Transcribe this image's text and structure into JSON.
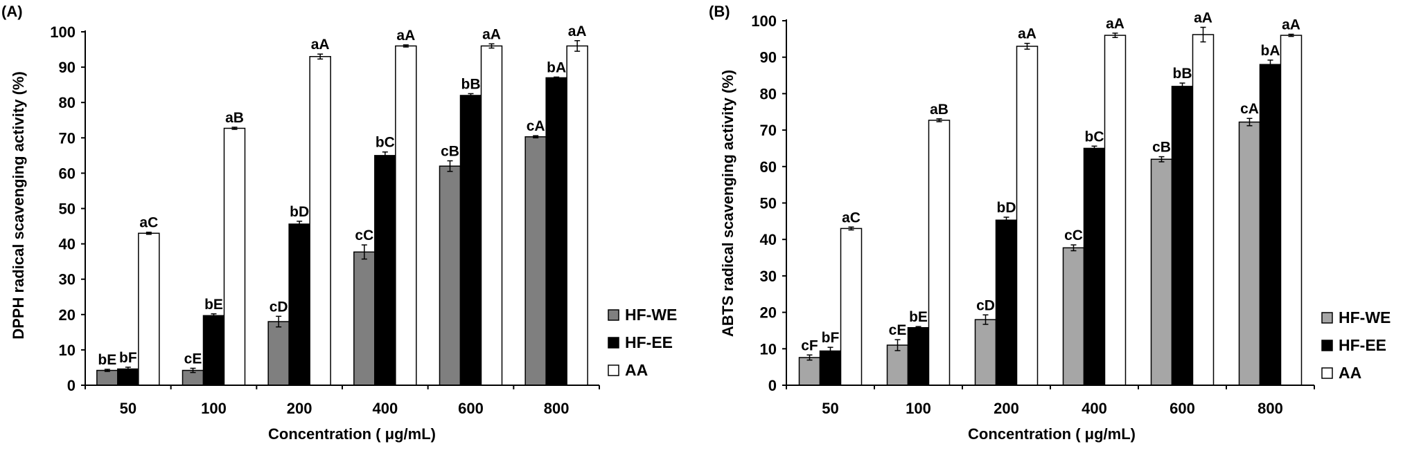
{
  "chart_data": [
    {
      "type": "bar",
      "panel_label": "(A)",
      "ylabel": "DPPH radical scavenging activity (%)",
      "xlabel": "Concentration ( μg/mL)",
      "categories": [
        "50",
        "100",
        "200",
        "400",
        "600",
        "800"
      ],
      "ylim": [
        0,
        100
      ],
      "yticks": [
        0,
        10,
        20,
        30,
        40,
        50,
        60,
        70,
        80,
        90,
        100
      ],
      "grid": false,
      "legend_position": "right",
      "series": [
        {
          "name": "HF-WE",
          "color": "#7f7f7f",
          "values": [
            4.2,
            4.2,
            18.0,
            37.7,
            62.0,
            70.3
          ],
          "errors": [
            0.3,
            0.6,
            1.5,
            2.0,
            1.5,
            0.3
          ],
          "letters": [
            "bE",
            "cE",
            "cD",
            "cC",
            "cB",
            "cA"
          ]
        },
        {
          "name": "HF-EE",
          "color": "#000000",
          "values": [
            4.6,
            19.7,
            45.6,
            65.0,
            82.0,
            87.0
          ],
          "errors": [
            0.5,
            0.5,
            0.8,
            1.0,
            0.5,
            0.2
          ],
          "letters": [
            "bF",
            "bE",
            "bD",
            "bC",
            "bB",
            "bA"
          ]
        },
        {
          "name": "AA",
          "color": "#ffffff",
          "values": [
            43.0,
            72.7,
            93.0,
            96.0,
            96.0,
            96.0
          ],
          "errors": [
            0.3,
            0.3,
            0.7,
            0.3,
            0.6,
            1.5
          ],
          "letters": [
            "aC",
            "aB",
            "aA",
            "aA",
            "aA",
            "aA"
          ]
        }
      ]
    },
    {
      "type": "bar",
      "panel_label": "(B)",
      "ylabel": "ABTS  radical scavenging activity (%)",
      "xlabel": "Concentration ( μg/mL)",
      "categories": [
        "50",
        "100",
        "200",
        "400",
        "600",
        "800"
      ],
      "ylim": [
        0,
        100
      ],
      "yticks": [
        0,
        10,
        20,
        30,
        40,
        50,
        60,
        70,
        80,
        90,
        100
      ],
      "grid": false,
      "legend_position": "right",
      "series": [
        {
          "name": "HF-WE",
          "color": "#a6a6a6",
          "values": [
            7.6,
            11.0,
            18.0,
            37.7,
            62.0,
            72.2
          ],
          "errors": [
            0.7,
            1.5,
            1.3,
            0.8,
            0.7,
            1.0
          ],
          "letters": [
            "cF",
            "cE",
            "cD",
            "cC",
            "cB",
            "cA"
          ]
        },
        {
          "name": "HF-EE",
          "color": "#000000",
          "values": [
            9.4,
            15.8,
            45.3,
            65.0,
            82.0,
            88.0
          ],
          "errors": [
            1.0,
            0.3,
            0.8,
            0.6,
            0.9,
            1.2
          ],
          "letters": [
            "bF",
            "bE",
            "bD",
            "bC",
            "bB",
            "bA"
          ]
        },
        {
          "name": "AA",
          "color": "#ffffff",
          "values": [
            43.0,
            72.7,
            93.0,
            96.0,
            96.2,
            96.0
          ],
          "errors": [
            0.4,
            0.4,
            0.8,
            0.6,
            2.0,
            0.3
          ],
          "letters": [
            "aC",
            "aB",
            "aA",
            "aA",
            "aA",
            "aA"
          ]
        }
      ]
    }
  ]
}
